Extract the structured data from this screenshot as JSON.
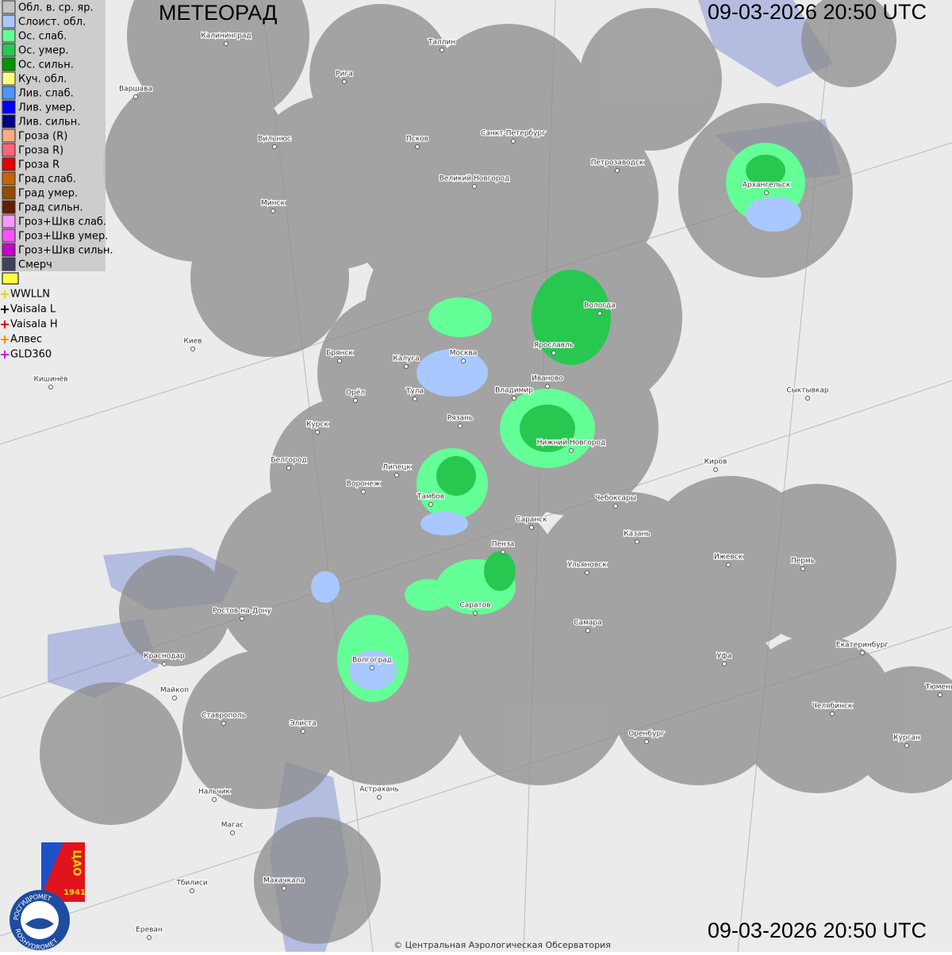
{
  "header": {
    "title": "МЕТЕОРАД",
    "time_top": "09-03-2026  20:50 UTC",
    "time_bottom": "09-03-2026  20:50 UTC"
  },
  "legend": [
    {
      "label": "Обл. в. ср. яр.",
      "color": "#c4c4c4"
    },
    {
      "label": "Слоист. обл.",
      "color": "#a8c8ff"
    },
    {
      "label": "Ос. слаб.",
      "color": "#64ff96"
    },
    {
      "label": "Ос. умер.",
      "color": "#28c850"
    },
    {
      "label": "Ос. сильн.",
      "color": "#009600"
    },
    {
      "label": "Куч. обл.",
      "color": "#ffff80"
    },
    {
      "label": "Лив. слаб.",
      "color": "#4b96ff"
    },
    {
      "label": "Лив. умер.",
      "color": "#0000ff"
    },
    {
      "label": "Лив. сильн.",
      "color": "#000080"
    },
    {
      "label": "Гроза (R)",
      "color": "#ffaa82"
    },
    {
      "label": "Гроза R)",
      "color": "#ff6478"
    },
    {
      "label": "Гроза R",
      "color": "#e60000"
    },
    {
      "label": "Град слаб.",
      "color": "#c86400"
    },
    {
      "label": "Град умер.",
      "color": "#964b00"
    },
    {
      "label": "Град сильн.",
      "color": "#641e00"
    },
    {
      "label": "Гроз+Шкв слаб.",
      "color": "#ff96ff"
    },
    {
      "label": "Гроз+Шкв умер.",
      "color": "#ff50ff"
    },
    {
      "label": "Гроз+Шкв сильн.",
      "color": "#c800c8"
    },
    {
      "label": "Смерч",
      "color": "#404060"
    }
  ],
  "lightning": [
    {
      "label": "WWLLN",
      "color": "#e6d200"
    },
    {
      "label": "Vaisala L",
      "color": "#000000"
    },
    {
      "label": "Vaisala H",
      "color": "#e60000"
    },
    {
      "label": "Алвес",
      "color": "#ff8c00"
    },
    {
      "label": "GLD360",
      "color": "#e000e0"
    }
  ],
  "cities": [
    "Калининград",
    "Таллин",
    "Рига",
    "Варшава",
    "Вильнюс",
    "Псков",
    "Санкт-Петербург",
    "Петрозаводск",
    "Великий Новгород",
    "Архангельск",
    "Минск",
    "Вологда",
    "Киев",
    "Брянск",
    "Калуга",
    "Москва",
    "Ярославль",
    "Иваново",
    "Кишинёв",
    "Тула",
    "Владимир",
    "Сыктывкар",
    "Орёл",
    "Рязань",
    "Курск",
    "Нижний Новгород",
    "Белгород",
    "Киров",
    "Липецк",
    "Воронеж",
    "Тамбов",
    "Чебоксары",
    "Саранск",
    "Казань",
    "Пенза",
    "Ижевск",
    "Пермь",
    "Ульяновск",
    "Ростов-на-Дону",
    "Саратов",
    "Самара",
    "Екатеринбург",
    "Краснодар",
    "Волгоград",
    "Уфа",
    "Тюмень",
    "Майкоп",
    "Челябинск",
    "Ставрополь",
    "Элиста",
    "Оренбург",
    "Курган",
    "Астрахань",
    "Нальчик",
    "Магас",
    "Тбилиси",
    "Махачкала",
    "Ереван"
  ],
  "logos": {
    "cao": "ЦАО",
    "year": "1941",
    "ring_top": "РОСГИДРОМЕТ",
    "ring_bottom": "ROSHYDROMET"
  },
  "copyright": "© Центральная Аэрологическая Обсерватория"
}
